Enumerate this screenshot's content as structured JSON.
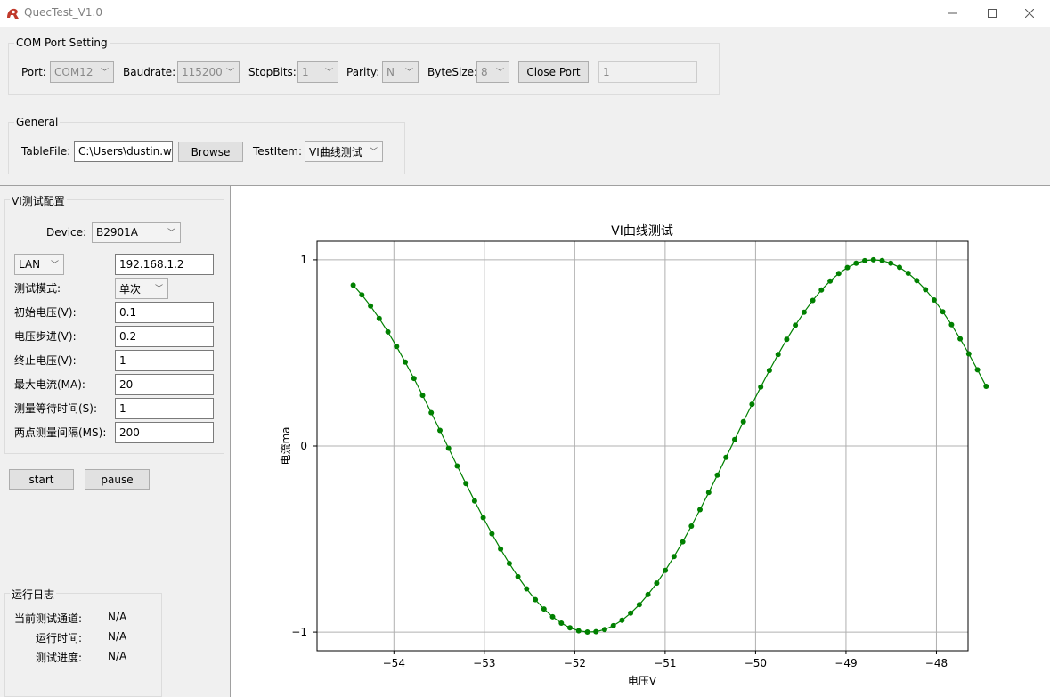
{
  "window": {
    "title": "QuecTest_V1.0"
  },
  "com_port": {
    "group_title": "COM Port Setting",
    "port_label": "Port:",
    "port_value": "COM12",
    "baudrate_label": "Baudrate:",
    "baudrate_value": "115200",
    "stopbits_label": "StopBits:",
    "stopbits_value": "1",
    "parity_label": "Parity:",
    "parity_value": "N",
    "bytesize_label": "ByteSize:",
    "bytesize_value": "8",
    "close_port_label": "Close Port",
    "status_value": "1"
  },
  "general": {
    "group_title": "General",
    "tablefile_label": "TableFile:",
    "tablefile_value": "C:\\Users\\dustin.w",
    "browse_label": "Browse",
    "testitem_label": "TestItem:",
    "testitem_value": "VI曲线测试"
  },
  "vi_config": {
    "group_title": "VI测试配置",
    "device_label": "Device:",
    "device_value": "B2901A",
    "connection_value": "LAN",
    "ip_value": "192.168.1.2",
    "mode_label": "测试模式:",
    "mode_value": "单次",
    "fields": [
      {
        "label": "初始电压(V):",
        "value": "0.1"
      },
      {
        "label": "电压步进(V):",
        "value": "0.2"
      },
      {
        "label": "终止电压(V):",
        "value": "1"
      },
      {
        "label": "最大电流(MA):",
        "value": "20"
      },
      {
        "label": "测量等待时间(S):",
        "value": "1"
      },
      {
        "label": "两点测量间隔(MS):",
        "value": "200"
      }
    ]
  },
  "actions": {
    "start_label": "start",
    "pause_label": "pause"
  },
  "log": {
    "group_title": "运行日志",
    "channel_label": "当前测试通道:",
    "channel_value": "N/A",
    "runtime_label": "运行时间:",
    "runtime_value": "N/A",
    "progress_label": "测试进度:",
    "progress_value": "N/A"
  },
  "chart_data": {
    "type": "line",
    "title": "VI曲线测试",
    "xlabel": "电压V",
    "ylabel": "电流ma",
    "xlim": [
      -54.85,
      -47.65
    ],
    "ylim": [
      -1.1,
      1.1
    ],
    "xticks": [
      -54,
      -53,
      -52,
      -51,
      -50,
      -49,
      -48
    ],
    "yticks": [
      -1,
      0,
      1
    ],
    "grid": true,
    "color": "#008000",
    "x_start": -54.45,
    "x_end": -47.45,
    "num_points": 74,
    "curve": "sin(x)"
  }
}
